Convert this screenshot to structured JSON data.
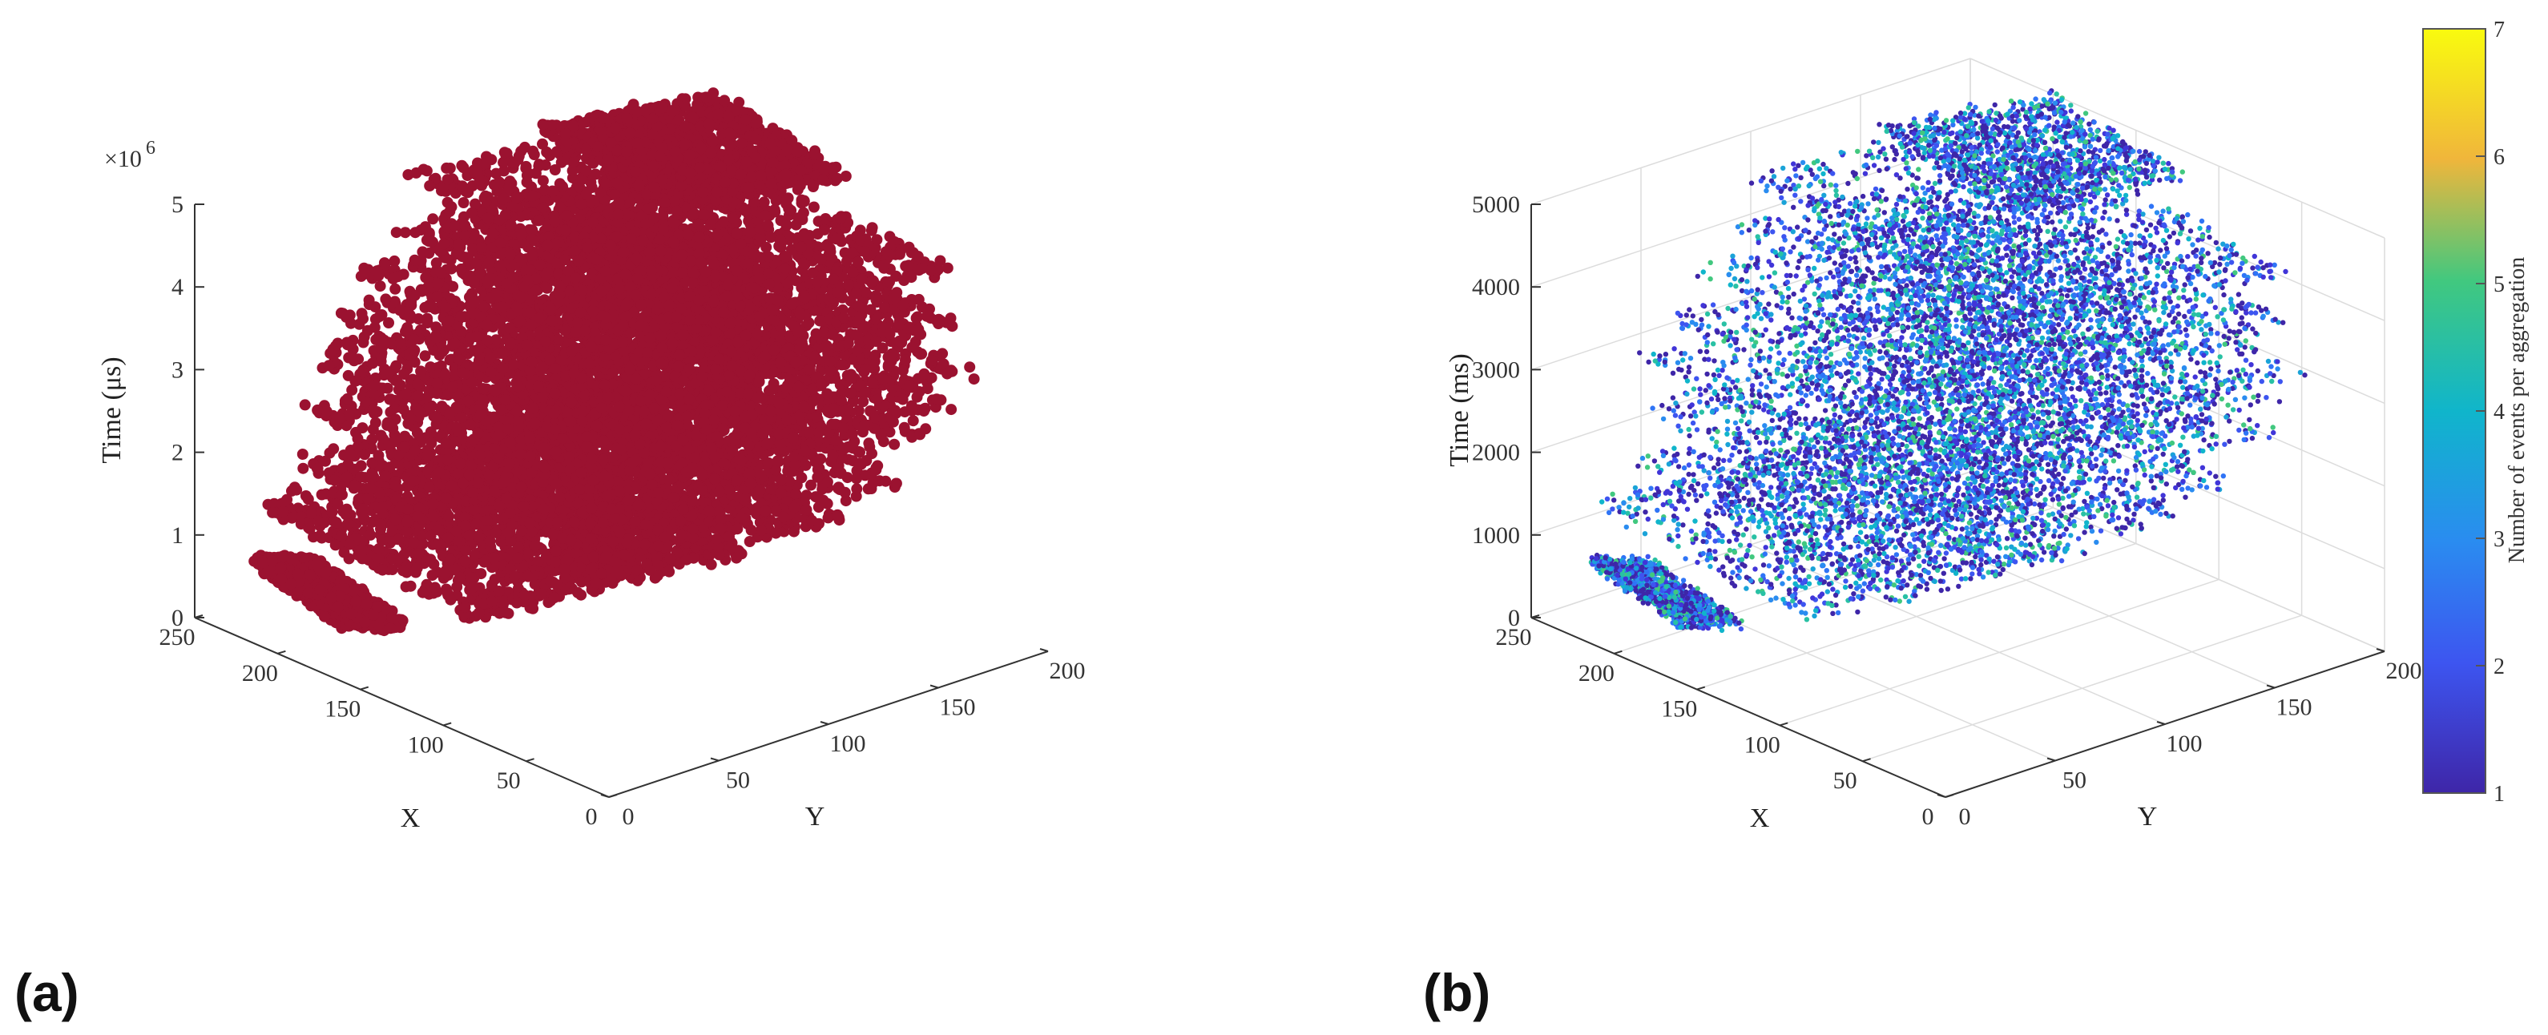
{
  "figure": {
    "panels": [
      {
        "panel_label": "(a)",
        "zlabel": "Time (μs)",
        "xlabel": "X",
        "ylabel": "Y",
        "exponent": "×10",
        "exponent_power": "6",
        "marker_color": "#9b1230"
      },
      {
        "panel_label": "(b)",
        "zlabel": "Time (ms)",
        "xlabel": "X",
        "ylabel": "Y",
        "colorbar_label": "Number of events per aggregation"
      }
    ]
  },
  "chart_data": [
    {
      "type": "scatter",
      "projection": "3d",
      "title": "",
      "xlabel": "X",
      "ylabel": "Y",
      "zlabel": "Time (μs)",
      "xlim": [
        0,
        250
      ],
      "ylim": [
        0,
        200
      ],
      "zlim": [
        0,
        5000000
      ],
      "x_ticks": [
        "0",
        "50",
        "100",
        "150",
        "200",
        "250"
      ],
      "y_ticks": [
        "0",
        "50",
        "100",
        "150",
        "200"
      ],
      "z_ticks": [
        "0",
        "1",
        "2",
        "3",
        "4",
        "5"
      ],
      "z_multiplier": "×10^6",
      "grid": false,
      "marker_color": "#9b1230",
      "sheets": [
        {
          "z": 500000,
          "x": [
            175,
            230
          ],
          "y": [
            10,
            40
          ]
        },
        {
          "z": 1000000,
          "x": [
            110,
            240
          ],
          "y": [
            20,
            150
          ]
        },
        {
          "z": 1500000,
          "x": [
            80,
            230
          ],
          "y": [
            30,
            170
          ]
        },
        {
          "z": 2000000,
          "x": [
            60,
            240
          ],
          "y": [
            40,
            180
          ]
        },
        {
          "z": 2600000,
          "x": [
            50,
            240
          ],
          "y": [
            40,
            190
          ]
        },
        {
          "z": 3000000,
          "x": [
            40,
            240
          ],
          "y": [
            50,
            190
          ]
        },
        {
          "z": 3500000,
          "x": [
            30,
            235
          ],
          "y": [
            60,
            190
          ]
        },
        {
          "z": 4000000,
          "x": [
            40,
            225
          ],
          "y": [
            70,
            190
          ]
        },
        {
          "z": 4500000,
          "x": [
            50,
            230
          ],
          "y": [
            80,
            195
          ]
        },
        {
          "z": 5000000,
          "x": [
            120,
            200
          ],
          "y": [
            120,
            200
          ]
        }
      ]
    },
    {
      "type": "scatter",
      "projection": "3d",
      "title": "",
      "xlabel": "X",
      "ylabel": "Y",
      "zlabel": "Time (ms)",
      "xlim": [
        0,
        250
      ],
      "ylim": [
        0,
        200
      ],
      "zlim": [
        0,
        5000
      ],
      "x_ticks": [
        "0",
        "50",
        "100",
        "150",
        "200",
        "250"
      ],
      "y_ticks": [
        "0",
        "50",
        "100",
        "150",
        "200"
      ],
      "z_ticks": [
        "0",
        "1000",
        "2000",
        "3000",
        "4000",
        "5000"
      ],
      "grid": true,
      "colormap": "parula",
      "color_limits": [
        1,
        7
      ],
      "colorbar_label": "Number of events per aggregation",
      "colorbar_ticks": [
        "1",
        "2",
        "3",
        "4",
        "5",
        "6",
        "7"
      ],
      "colors": {
        "1": "#3e26a8",
        "2": "#3d55f0",
        "3": "#2a8cf0",
        "4": "#10b5cb",
        "5": "#41c87f",
        "6": "#f0b63b",
        "7": "#f9fb0e"
      },
      "sheets": [
        {
          "z": 500,
          "x": [
            175,
            230
          ],
          "y": [
            10,
            40
          ]
        },
        {
          "z": 1000,
          "x": [
            110,
            240
          ],
          "y": [
            20,
            150
          ]
        },
        {
          "z": 1500,
          "x": [
            80,
            230
          ],
          "y": [
            30,
            170
          ]
        },
        {
          "z": 2000,
          "x": [
            60,
            240
          ],
          "y": [
            40,
            180
          ]
        },
        {
          "z": 2600,
          "x": [
            50,
            240
          ],
          "y": [
            40,
            190
          ]
        },
        {
          "z": 3000,
          "x": [
            40,
            240
          ],
          "y": [
            50,
            190
          ]
        },
        {
          "z": 3500,
          "x": [
            30,
            235
          ],
          "y": [
            60,
            190
          ]
        },
        {
          "z": 4000,
          "x": [
            40,
            225
          ],
          "y": [
            70,
            190
          ]
        },
        {
          "z": 4500,
          "x": [
            50,
            230
          ],
          "y": [
            80,
            195
          ]
        },
        {
          "z": 5000,
          "x": [
            120,
            200
          ],
          "y": [
            120,
            200
          ]
        }
      ]
    }
  ]
}
